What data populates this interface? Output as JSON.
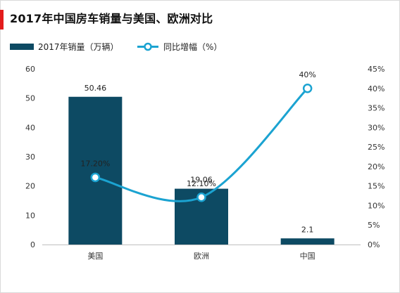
{
  "header": {
    "title": "2017年中国房车销量与美国、欧洲对比",
    "accent_color": "#e31c1c"
  },
  "chart_data": {
    "type": "bar",
    "categories": [
      "美国",
      "欧洲",
      "中国"
    ],
    "series": [
      {
        "name": "2017年销量（万辆）",
        "type": "bar",
        "axis": "left",
        "color": "#0d4a63",
        "values": [
          50.46,
          19.06,
          2.1
        ],
        "labels": [
          "50.46",
          "19.06",
          "2.1"
        ]
      },
      {
        "name": "同比增幅（%）",
        "type": "line",
        "axis": "right",
        "color": "#1ba3d1",
        "smooth": true,
        "values": [
          17.2,
          12.1,
          40
        ],
        "labels": [
          "17.20%",
          "12.10%",
          "40%"
        ]
      }
    ],
    "y_left": {
      "range": [
        0,
        60
      ],
      "ticks": [
        "0",
        "10",
        "20",
        "30",
        "40",
        "50",
        "60"
      ]
    },
    "y_right": {
      "range": [
        0,
        45
      ],
      "ticks": [
        "0%",
        "5%",
        "10%",
        "15%",
        "20%",
        "25%",
        "30%",
        "35%",
        "40%",
        "45%"
      ]
    },
    "grid": false,
    "legend_position": "top-left"
  }
}
